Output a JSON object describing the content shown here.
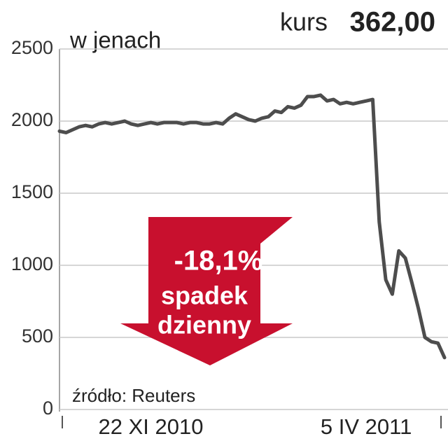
{
  "chart_data": {
    "type": "line",
    "title": "kurs",
    "subtitle": "362,00",
    "y_label": "w jenach",
    "annotations": [
      "-18,1%",
      "spadek",
      "dzienny"
    ],
    "source": "źródło: Reuters",
    "categories": [
      null,
      null,
      null,
      null,
      null,
      null,
      null,
      null,
      null,
      null,
      null,
      null,
      null,
      null,
      "22 XI 2010",
      null,
      null,
      null,
      null,
      null,
      null,
      null,
      null,
      null,
      null,
      null,
      null,
      null,
      null,
      null,
      null,
      null,
      null,
      null,
      null,
      null,
      null,
      null,
      null,
      null,
      null,
      null,
      null,
      null,
      null,
      null,
      null,
      "5 IV 2011",
      null,
      null,
      null,
      null,
      null,
      null,
      null,
      null,
      null,
      null,
      null,
      null
    ],
    "series": [
      {
        "name": "kurs",
        "color": "#4d4d4d",
        "values": [
          1930,
          1920,
          1940,
          1960,
          1970,
          1960,
          1980,
          1990,
          1980,
          1990,
          2000,
          1980,
          1970,
          1980,
          1990,
          1980,
          1990,
          1990,
          1990,
          1980,
          1990,
          1990,
          1980,
          1980,
          1990,
          1980,
          2020,
          2050,
          2030,
          2010,
          2000,
          2020,
          2030,
          2070,
          2060,
          2100,
          2090,
          2110,
          2170,
          2170,
          2180,
          2140,
          2150,
          2120,
          2130,
          2120,
          2130,
          2140,
          2150,
          1300,
          900,
          800,
          1100,
          1050,
          880,
          700,
          500,
          470,
          460,
          360
        ]
      }
    ],
    "ylim": [
      0,
      2500
    ],
    "yticks": [
      0,
      500,
      1000,
      1500,
      2000,
      2500
    ],
    "grid": true,
    "arrow_color": "#c8102e"
  }
}
